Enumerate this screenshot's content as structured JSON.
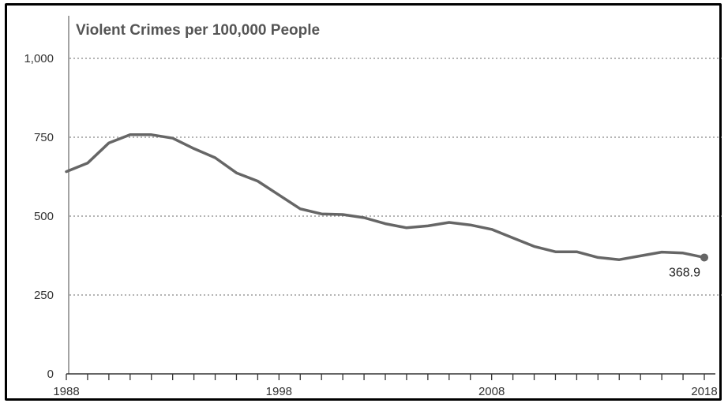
{
  "chart_data": {
    "type": "line",
    "title": "Violent Crimes per 100,000 People",
    "xlabel": "",
    "ylabel": "",
    "xlim": [
      1988,
      2018
    ],
    "ylim": [
      0,
      1000
    ],
    "yticks": [
      0,
      250,
      500,
      750,
      1000
    ],
    "ytick_labels": [
      "0",
      "250",
      "500",
      "750",
      "1,000"
    ],
    "xtick_labels": [
      {
        "x": 1988,
        "label": "1988"
      },
      {
        "x": 1998,
        "label": "1998"
      },
      {
        "x": 2008,
        "label": "2008"
      },
      {
        "x": 2018,
        "label": "2018"
      }
    ],
    "grid": "horizontal dotted",
    "series": [
      {
        "x": [
          1988,
          1989,
          1990,
          1991,
          1992,
          1993,
          1994,
          1995,
          1996,
          1997,
          1998,
          1999,
          2000,
          2001,
          2002,
          2003,
          2004,
          2005,
          2006,
          2007,
          2008,
          2009,
          2010,
          2011,
          2012,
          2013,
          2014,
          2015,
          2016,
          2017,
          2018
        ],
        "y": [
          641,
          668,
          732,
          758,
          758,
          747,
          714,
          685,
          637,
          611,
          567,
          523,
          507,
          505,
          495,
          476,
          463,
          469,
          480,
          472,
          458,
          431,
          404,
          387,
          387,
          369,
          362,
          374,
          386,
          383,
          368.9
        ],
        "color": "#666666"
      }
    ],
    "annotations": [
      {
        "x": 2018,
        "y": 368.9,
        "text": "368.9"
      }
    ]
  }
}
